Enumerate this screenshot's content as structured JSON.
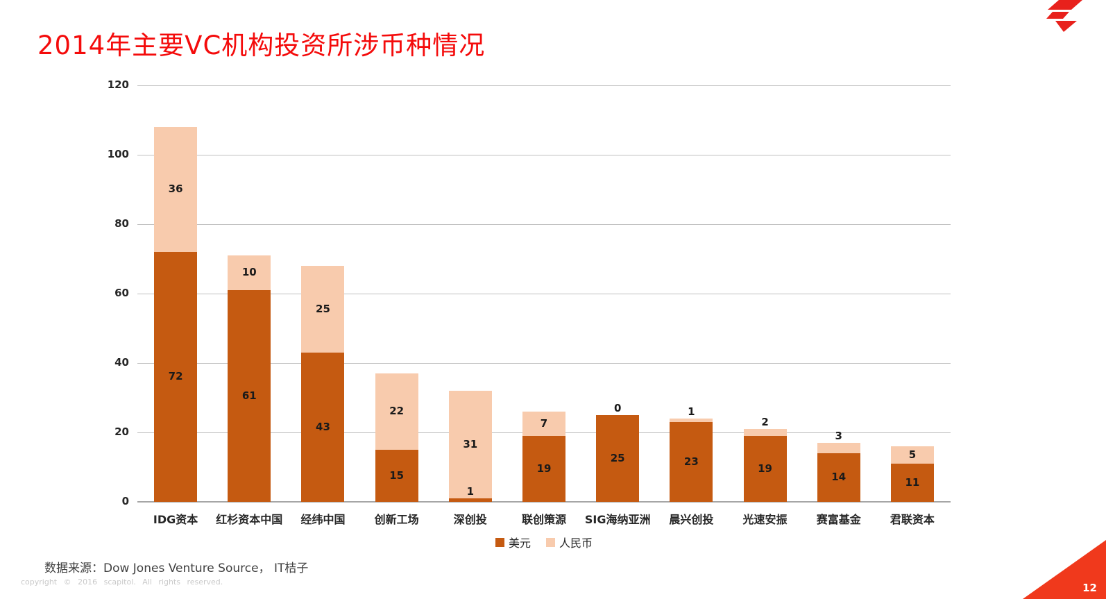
{
  "title": "2014年主要VC机构投资所涉币种情况",
  "footer": {
    "source_note": "数据来源：Dow Jones Venture Source， IT桔子",
    "copyright": "copyright  ©  2016  scapitol.  All  rights  reserved.",
    "page_number": "12"
  },
  "colors": {
    "usd": "#C55A11",
    "rmb": "#F8CBAD",
    "title_red": "#F40B0B",
    "corner_red": "#F0391C",
    "logo_red": "#E8211C",
    "gridline": "#BFBFBF",
    "axis": "#A6A6A6"
  },
  "chart_data": {
    "type": "bar",
    "stacked": true,
    "title": "2014年主要VC机构投资所涉币种情况",
    "categories": [
      "IDG资本",
      "红杉资本中国",
      "经纬中国",
      "创新工场",
      "深创投",
      "联创策源",
      "SIG海纳亚洲",
      "晨兴创投",
      "光速安振",
      "赛富基金",
      "君联资本"
    ],
    "series": [
      {
        "name": "美元",
        "color_key": "usd",
        "values": [
          72,
          61,
          43,
          15,
          1,
          19,
          25,
          23,
          19,
          14,
          11
        ]
      },
      {
        "name": "人民币",
        "color_key": "rmb",
        "values": [
          36,
          10,
          25,
          22,
          31,
          7,
          0,
          1,
          2,
          3,
          5
        ]
      }
    ],
    "ylim": [
      0,
      120
    ],
    "yticks": [
      0,
      20,
      40,
      60,
      80,
      100,
      120
    ],
    "grid": true,
    "legend_position": "bottom",
    "data_labels": true
  }
}
